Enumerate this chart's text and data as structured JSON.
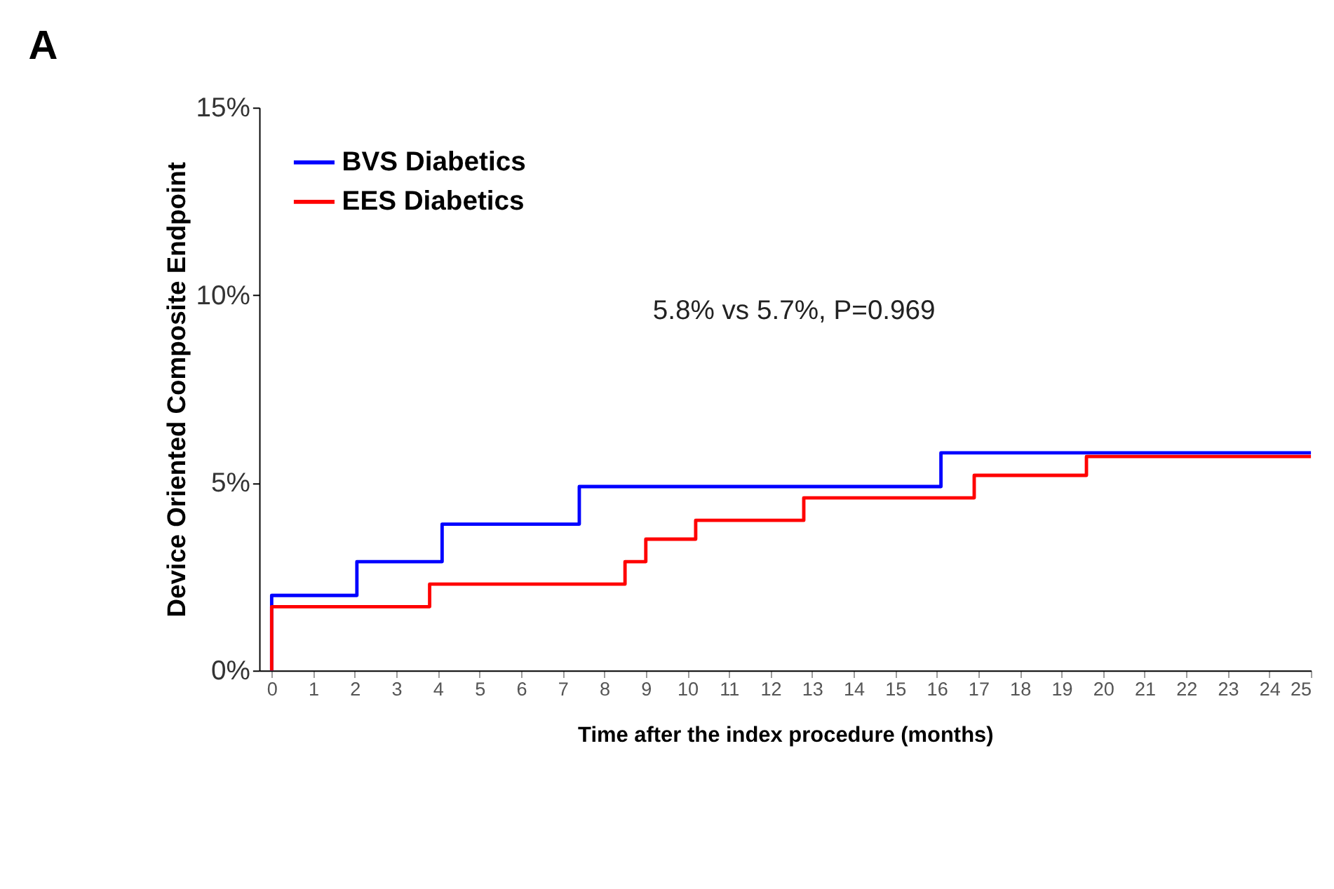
{
  "chart_data": {
    "type": "step",
    "title": "A",
    "xlabel": "Time after the index procedure (months)",
    "ylabel": "Device Oriented Composite Endpoint",
    "series": [
      {
        "name": "BVS Diabetics",
        "color": "#0000ff",
        "x": [
          0,
          0,
          2.05,
          4.1,
          7.4,
          16.1,
          25
        ],
        "values": [
          0,
          2.0,
          2.9,
          3.9,
          4.9,
          5.8,
          5.8
        ]
      },
      {
        "name": "EES Diabetics",
        "color": "#ff0000",
        "x": [
          0,
          0,
          3.8,
          8.5,
          9.0,
          10.2,
          12.8,
          16.9,
          19.6,
          25
        ],
        "values": [
          0,
          1.7,
          2.3,
          2.9,
          3.5,
          4.0,
          4.6,
          5.2,
          5.7,
          5.7
        ]
      }
    ],
    "xlim": [
      -0.3,
      25
    ],
    "xticks": [
      0,
      1,
      2,
      3,
      4,
      5,
      6,
      7,
      8,
      9,
      10,
      11,
      12,
      13,
      14,
      15,
      16,
      17,
      18,
      19,
      20,
      21,
      22,
      23,
      24,
      25
    ],
    "ylim": [
      0,
      15
    ],
    "yticks": [
      {
        "value": 0,
        "label": "0%"
      },
      {
        "value": 5,
        "label": "5%"
      },
      {
        "value": 10,
        "label": "10%"
      },
      {
        "value": 15,
        "label": "15%"
      }
    ],
    "annotations": [
      "5.8% vs 5.7%, P=0.969"
    ],
    "legend": "top left",
    "grid": false
  }
}
